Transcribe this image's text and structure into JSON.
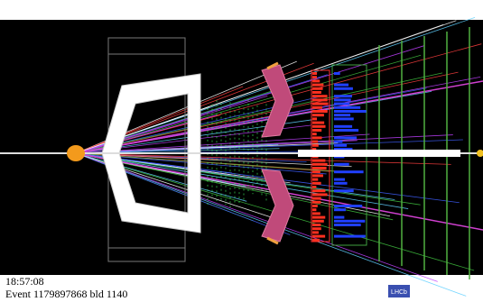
{
  "footer": {
    "time": "18:57:08",
    "event": "Event 1179897868  bld 1140"
  },
  "logo": "LHCb"
}
